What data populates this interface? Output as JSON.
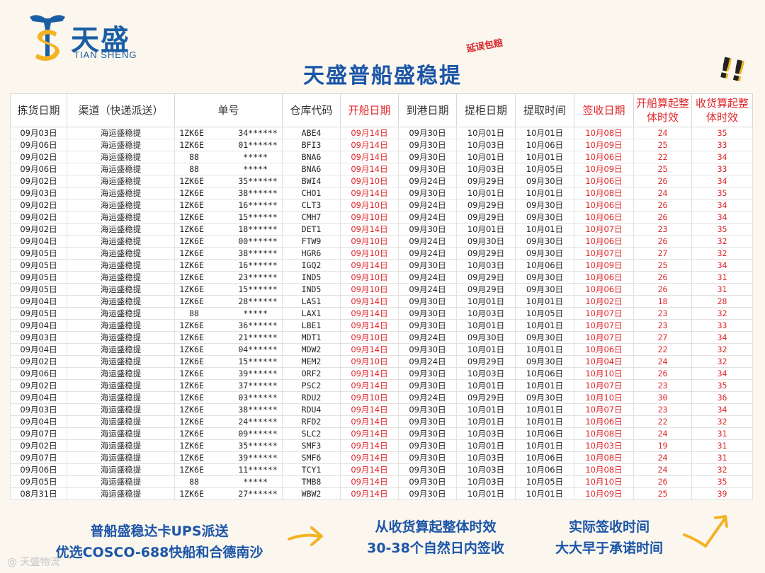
{
  "brand": {
    "cn": "天盛",
    "en": "TIAN SHENG",
    "primary": "#1a5fa5",
    "accent": "#f2b324"
  },
  "title": "天盛普船盛稳提",
  "stamp": "延误包赔",
  "exclaim": "!!",
  "colors": {
    "red_header": "#e0262a",
    "title": "#1b55a8",
    "background": "#fbf6ee"
  },
  "table": {
    "headers": [
      "拣货日期",
      "渠道（快递派送）",
      "单号",
      "仓库代码",
      "开船日期",
      "到港日期",
      "提柜日期",
      "提取时间",
      "签收日期",
      "开船算起整体时效",
      "收货算起整体时效"
    ],
    "rows": [
      [
        "09月03日",
        "海运盛稳提",
        "1ZK6E       34******",
        "ABE4",
        "09月14日",
        "09月30日",
        "10月01日",
        "10月01日",
        "10月08日",
        "24",
        "35"
      ],
      [
        "09月06日",
        "海运盛稳提",
        "1ZK6E       01******",
        "BFI3",
        "09月14日",
        "09月30日",
        "10月03日",
        "10月06日",
        "10月09日",
        "25",
        "33"
      ],
      [
        "09月02日",
        "海运盛稳提",
        "88         *****",
        "BNA6",
        "09月14日",
        "09月30日",
        "10月01日",
        "10月01日",
        "10月06日",
        "22",
        "34"
      ],
      [
        "09月06日",
        "海运盛稳提",
        "88         *****",
        "BNA6",
        "09月14日",
        "09月30日",
        "10月03日",
        "10月05日",
        "10月09日",
        "25",
        "33"
      ],
      [
        "09月02日",
        "海运盛稳提",
        "1ZK6E       35******",
        "BWI4",
        "09月10日",
        "09月24日",
        "09月29日",
        "09月30日",
        "10月06日",
        "26",
        "34"
      ],
      [
        "09月03日",
        "海运盛稳提",
        "1ZK6E       38******",
        "CHO1",
        "09月14日",
        "09月30日",
        "10月01日",
        "10月01日",
        "10月08日",
        "24",
        "35"
      ],
      [
        "09月02日",
        "海运盛稳提",
        "1ZK6E       16******",
        "CLT3",
        "09月10日",
        "09月24日",
        "09月29日",
        "09月30日",
        "10月06日",
        "26",
        "34"
      ],
      [
        "09月02日",
        "海运盛稳提",
        "1ZK6E       15******",
        "CMH7",
        "09月10日",
        "09月24日",
        "09月29日",
        "09月30日",
        "10月06日",
        "26",
        "34"
      ],
      [
        "09月02日",
        "海运盛稳提",
        "1ZK6E       18******",
        "DET1",
        "09月14日",
        "09月30日",
        "10月01日",
        "10月01日",
        "10月07日",
        "23",
        "35"
      ],
      [
        "09月04日",
        "海运盛稳提",
        "1ZK6E       00******",
        "FTW9",
        "09月10日",
        "09月24日",
        "09月30日",
        "09月30日",
        "10月06日",
        "26",
        "32"
      ],
      [
        "09月05日",
        "海运盛稳提",
        "1ZK6E       38******",
        "HGR6",
        "09月10日",
        "09月24日",
        "09月29日",
        "09月30日",
        "10月07日",
        "27",
        "32"
      ],
      [
        "09月05日",
        "海运盛稳提",
        "1ZK6E       16******",
        "IGQ2",
        "09月14日",
        "09月30日",
        "10月03日",
        "10月06日",
        "10月09日",
        "25",
        "34"
      ],
      [
        "09月05日",
        "海运盛稳提",
        "1ZK6E       23******",
        "IND5",
        "09月10日",
        "09月24日",
        "09月29日",
        "09月30日",
        "10月06日",
        "26",
        "31"
      ],
      [
        "09月05日",
        "海运盛稳提",
        "1ZK6E       15******",
        "IND5",
        "09月10日",
        "09月24日",
        "09月29日",
        "09月30日",
        "10月06日",
        "26",
        "31"
      ],
      [
        "09月04日",
        "海运盛稳提",
        "1ZK6E       28******",
        "LAS1",
        "09月14日",
        "09月30日",
        "10月01日",
        "10月01日",
        "10月02日",
        "18",
        "28"
      ],
      [
        "09月05日",
        "海运盛稳提",
        "88         *****",
        "LAX1",
        "09月14日",
        "09月30日",
        "10月03日",
        "10月05日",
        "10月07日",
        "23",
        "32"
      ],
      [
        "09月04日",
        "海运盛稳提",
        "1ZK6E       36******",
        "LBE1",
        "09月14日",
        "09月30日",
        "10月01日",
        "10月01日",
        "10月07日",
        "23",
        "33"
      ],
      [
        "09月03日",
        "海运盛稳提",
        "1ZK6E       21******",
        "MDT1",
        "09月10日",
        "09月24日",
        "09月30日",
        "09月30日",
        "10月07日",
        "27",
        "34"
      ],
      [
        "09月04日",
        "海运盛稳提",
        "1ZK6E       04******",
        "MDW2",
        "09月14日",
        "09月30日",
        "10月01日",
        "10月01日",
        "10月06日",
        "22",
        "32"
      ],
      [
        "09月02日",
        "海运盛稳提",
        "1ZK6E       15******",
        "MEM2",
        "09月10日",
        "09月24日",
        "09月29日",
        "09月30日",
        "10月04日",
        "24",
        "32"
      ],
      [
        "09月06日",
        "海运盛稳提",
        "1ZK6E       39******",
        "ORF2",
        "09月14日",
        "09月30日",
        "10月03日",
        "10月06日",
        "10月10日",
        "26",
        "34"
      ],
      [
        "09月02日",
        "海运盛稳提",
        "1ZK6E       37******",
        "PSC2",
        "09月14日",
        "09月30日",
        "10月01日",
        "10月01日",
        "10月07日",
        "23",
        "35"
      ],
      [
        "09月04日",
        "海运盛稳提",
        "1ZK6E       03******",
        "RDU2",
        "09月10日",
        "09月24日",
        "09月29日",
        "09月30日",
        "10月10日",
        "30",
        "36"
      ],
      [
        "09月03日",
        "海运盛稳提",
        "1ZK6E       38******",
        "RDU4",
        "09月14日",
        "09月30日",
        "10月01日",
        "10月01日",
        "10月07日",
        "23",
        "34"
      ],
      [
        "09月04日",
        "海运盛稳提",
        "1ZK6E       24******",
        "RFD2",
        "09月14日",
        "09月30日",
        "10月01日",
        "10月01日",
        "10月06日",
        "22",
        "32"
      ],
      [
        "09月07日",
        "海运盛稳提",
        "1ZK6E       09******",
        "SLC2",
        "09月14日",
        "09月30日",
        "10月03日",
        "10月06日",
        "10月08日",
        "24",
        "31"
      ],
      [
        "09月02日",
        "海运盛稳提",
        "1ZK6E       35******",
        "SMF3",
        "09月14日",
        "09月30日",
        "10月01日",
        "10月01日",
        "10月03日",
        "19",
        "31"
      ],
      [
        "09月07日",
        "海运盛稳提",
        "1ZK6E       39******",
        "SMF6",
        "09月14日",
        "09月30日",
        "10月03日",
        "10月06日",
        "10月08日",
        "24",
        "31"
      ],
      [
        "09月06日",
        "海运盛稳提",
        "1ZK6E       11******",
        "TCY1",
        "09月14日",
        "09月30日",
        "10月03日",
        "10月06日",
        "10月08日",
        "24",
        "32"
      ],
      [
        "09月05日",
        "海运盛稳提",
        "88         *****",
        "TMB8",
        "09月14日",
        "09月30日",
        "10月03日",
        "10月05日",
        "10月10日",
        "26",
        "35"
      ],
      [
        "08月31日",
        "海运盛稳提",
        "1ZK6E       27******",
        "WBW2",
        "09月14日",
        "09月30日",
        "10月01日",
        "10月01日",
        "10月09日",
        "25",
        "39"
      ]
    ]
  },
  "notes": {
    "left_line1": "普船盛稳达卡UPS派送",
    "left_line2": "优选COSCO-688快船和合德南沙",
    "mid_line1": "从收货算起整体时效",
    "mid_line2": "30-38个自然日内签收",
    "right_line1": "实际签收时间",
    "right_line2": "大大早于承诺时间"
  },
  "corner_mark": "@ 天盛物流"
}
